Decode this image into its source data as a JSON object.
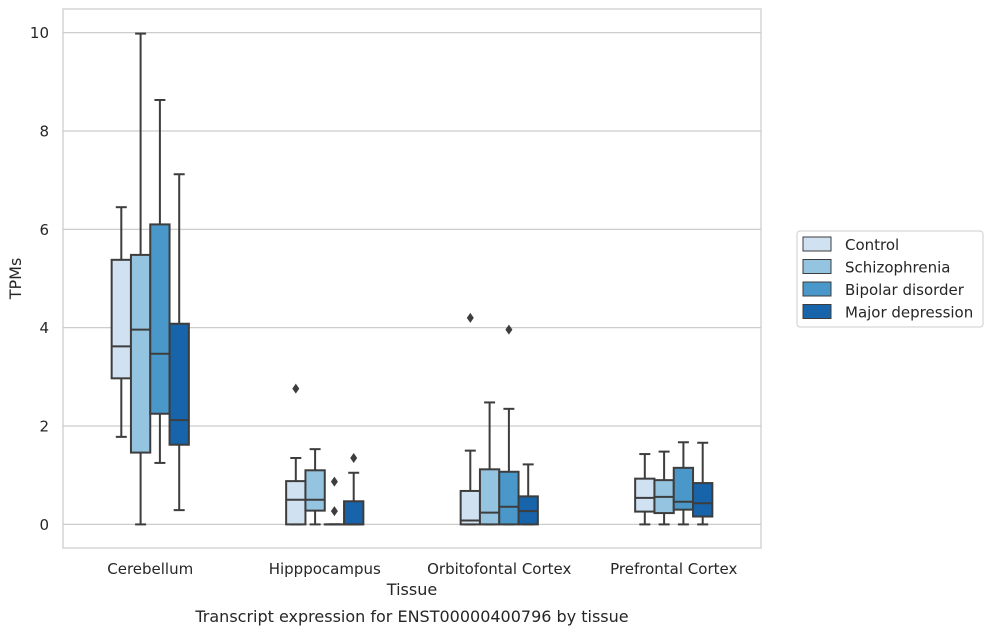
{
  "chart_data": {
    "type": "boxplot",
    "title": "Transcript expression for ENST00000400796 by tissue",
    "xlabel": "Tissue",
    "ylabel": "TPMs",
    "ylim": [
      -0.48,
      10.48
    ],
    "yticks": [
      0,
      2,
      4,
      6,
      8,
      10
    ],
    "grid": "horizontal",
    "legend_position": "right",
    "categories": [
      "Cerebellum",
      "Hipppocampus",
      "Orbitofontal Cortex",
      "Prefrontal Cortex"
    ],
    "series": [
      {
        "name": "Control",
        "color": "#d0e1f2",
        "boxes": [
          {
            "whislo": 1.78,
            "q1": 2.97,
            "med": 3.62,
            "q3": 5.38,
            "whishi": 6.45,
            "fliers": []
          },
          {
            "whislo": 0.0,
            "q1": 0.0,
            "med": 0.5,
            "q3": 0.88,
            "whishi": 1.35,
            "fliers": [
              2.76
            ]
          },
          {
            "whislo": 0.0,
            "q1": 0.0,
            "med": 0.08,
            "q3": 0.68,
            "whishi": 1.5,
            "fliers": [
              4.2
            ]
          },
          {
            "whislo": 0.0,
            "q1": 0.26,
            "med": 0.54,
            "q3": 0.93,
            "whishi": 1.43,
            "fliers": []
          }
        ]
      },
      {
        "name": "Schizophrenia",
        "color": "#94c4df",
        "boxes": [
          {
            "whislo": 0.0,
            "q1": 1.46,
            "med": 3.96,
            "q3": 5.48,
            "whishi": 9.98,
            "fliers": []
          },
          {
            "whislo": 0.0,
            "q1": 0.28,
            "med": 0.5,
            "q3": 1.1,
            "whishi": 1.53,
            "fliers": []
          },
          {
            "whislo": 0.0,
            "q1": 0.0,
            "med": 0.24,
            "q3": 1.12,
            "whishi": 2.48,
            "fliers": []
          },
          {
            "whislo": 0.0,
            "q1": 0.23,
            "med": 0.56,
            "q3": 0.9,
            "whishi": 1.48,
            "fliers": []
          }
        ]
      },
      {
        "name": "Bipolar disorder",
        "color": "#4a98c9",
        "boxes": [
          {
            "whislo": 1.25,
            "q1": 2.25,
            "med": 3.47,
            "q3": 6.1,
            "whishi": 8.63,
            "fliers": []
          },
          {
            "whislo": 0.0,
            "q1": 0.0,
            "med": 0.0,
            "q3": 0.0,
            "whishi": 0.0,
            "fliers": [
              0.87,
              0.27
            ]
          },
          {
            "whislo": 0.0,
            "q1": 0.0,
            "med": 0.36,
            "q3": 1.07,
            "whishi": 2.35,
            "fliers": [
              3.96
            ]
          },
          {
            "whislo": 0.0,
            "q1": 0.3,
            "med": 0.46,
            "q3": 1.15,
            "whishi": 1.67,
            "fliers": []
          }
        ]
      },
      {
        "name": "Major depression",
        "color": "#1764ab",
        "boxes": [
          {
            "whislo": 0.29,
            "q1": 1.62,
            "med": 2.12,
            "q3": 4.08,
            "whishi": 7.12,
            "fliers": []
          },
          {
            "whislo": 0.0,
            "q1": 0.0,
            "med": 0.0,
            "q3": 0.47,
            "whishi": 1.05,
            "fliers": [
              1.35
            ]
          },
          {
            "whislo": 0.0,
            "q1": 0.0,
            "med": 0.27,
            "q3": 0.57,
            "whishi": 1.22,
            "fliers": []
          },
          {
            "whislo": 0.0,
            "q1": 0.16,
            "med": 0.43,
            "q3": 0.84,
            "whishi": 1.66,
            "fliers": []
          }
        ]
      }
    ]
  }
}
